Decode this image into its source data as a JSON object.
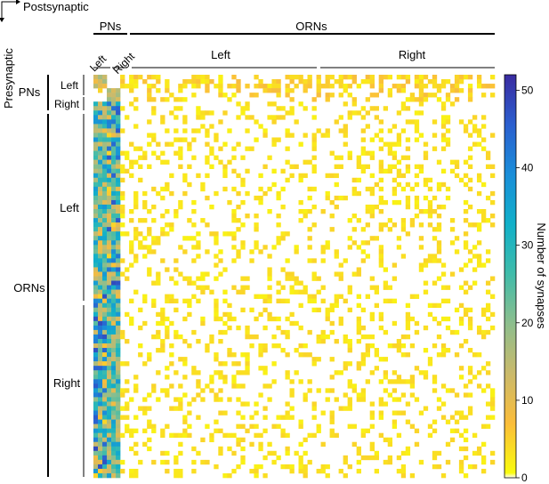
{
  "figure": {
    "postsynaptic_label": "Postsynaptic",
    "presynaptic_label": "Presynaptic"
  },
  "chart_data": {
    "type": "heatmap",
    "top_groups": [
      {
        "label": "PNs",
        "subgroups": [
          "Left",
          "Right"
        ]
      },
      {
        "label": "ORNs",
        "subgroups": [
          "Left",
          "Right"
        ]
      }
    ],
    "left_groups": [
      {
        "label": "PNs",
        "subgroups": [
          "Left",
          "Right"
        ]
      },
      {
        "label": "ORNs",
        "subgroups": [
          "Left",
          "Right"
        ]
      }
    ],
    "colorbar": {
      "label": "Number of synapses",
      "min": 0,
      "max": 52,
      "ticks": [
        0,
        10,
        20,
        30,
        40,
        50
      ]
    },
    "colormap": [
      "#ffffff",
      "#f9fb0e",
      "#fbbd3a",
      "#caba6b",
      "#8dbe8d",
      "#40bcaa",
      "#11b0c9",
      "#1a8ed9",
      "#2b5fcf",
      "#3a2ba0"
    ],
    "rows": {
      "pn_left": 3,
      "pn_right": 3,
      "orn_left": 42,
      "orn_right": 42
    },
    "cols": {
      "pn_left": 3,
      "pn_right": 3,
      "orn_left": 42,
      "orn_right": 42
    },
    "seed": 20240611
  }
}
